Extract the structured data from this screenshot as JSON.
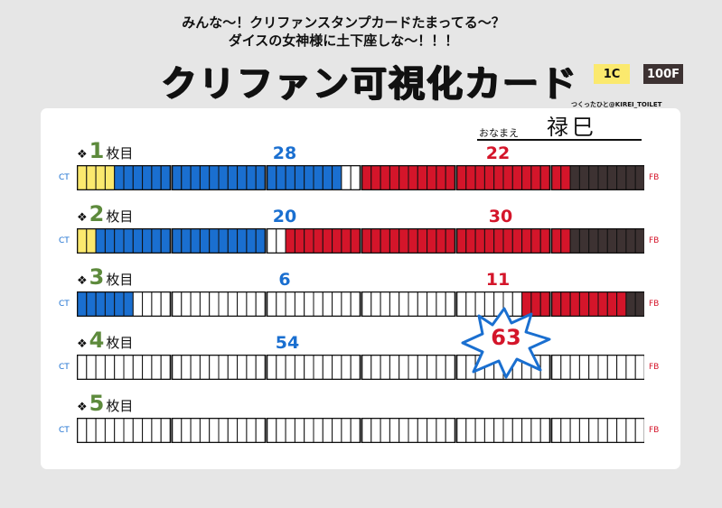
{
  "header": {
    "subtitle_line1": "みんな〜！クリファンスタンプカードたまってる〜？",
    "subtitle_line2": "ダイスの女神様に土下座しな〜！！！",
    "title": "クリファン可視化カード",
    "badge_c": "1C",
    "badge_f": "100F",
    "credit": "つくったひと@KIREI_TOILET"
  },
  "owner": {
    "label": "おなまえ",
    "value": "禄巳"
  },
  "colors": {
    "ct_yellow": "#fbe96e",
    "blue": "#1a6fd0",
    "red": "#d4152a",
    "dark": "#3d3232",
    "number_green": "#5d8a3c"
  },
  "labels": {
    "ct": "CT",
    "fb": "FB",
    "row_suffix": "枚目"
  },
  "rows": [
    {
      "num": "1",
      "ct_cells": 4,
      "blue_cells": 24,
      "red_cells": 22,
      "fb_cells": 8,
      "blue_count": "28",
      "red_count": "22"
    },
    {
      "num": "2",
      "ct_cells": 2,
      "blue_cells": 18,
      "red_cells": 30,
      "fb_cells": 8,
      "blue_count": "20",
      "red_count": "30"
    },
    {
      "num": "3",
      "ct_cells": 0,
      "blue_cells": 6,
      "red_cells": 11,
      "fb_cells": 2,
      "blue_count": "6",
      "red_count": "11"
    },
    {
      "num": "4",
      "ct_cells": 0,
      "blue_cells": 0,
      "red_cells": 0,
      "fb_cells": 0,
      "blue_count": "54",
      "red_count": ""
    },
    {
      "num": "5",
      "ct_cells": 0,
      "blue_cells": 0,
      "red_cells": 0,
      "fb_cells": 0,
      "blue_count": "",
      "red_count": ""
    }
  ],
  "burst_value": "63"
}
